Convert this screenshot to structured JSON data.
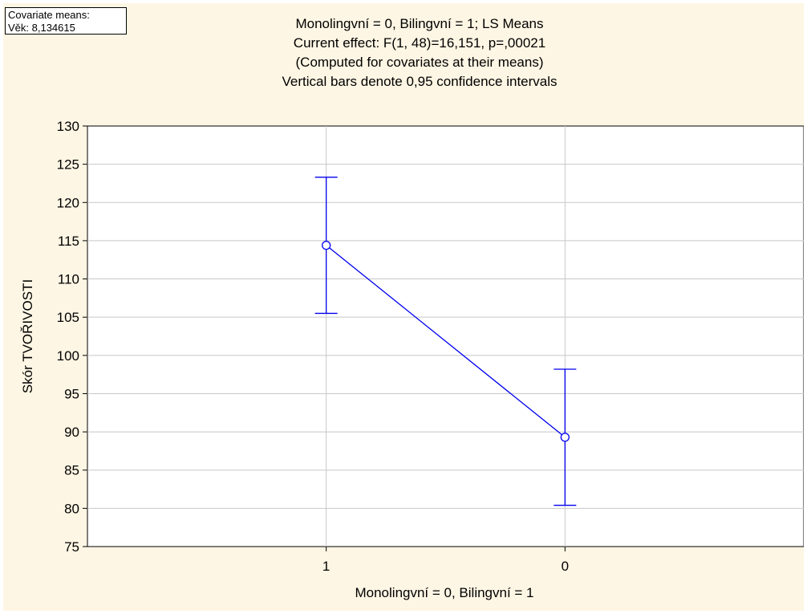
{
  "covariate_box": {
    "line1": "Covariate means:",
    "line2": "Věk: 8,134615"
  },
  "chart_data": {
    "type": "line",
    "title": "Monolingvní = 0, Bilingvní = 1; LS Means",
    "subtitle_lines": [
      "Current effect: F(1, 48)=16,151, p=,00021",
      "(Computed for covariates at their means)",
      "Vertical bars denote 0,95 confidence intervals"
    ],
    "xlabel": "Monolingvní = 0, Bilingvní = 1",
    "ylabel": "Skór TVOŘIVOSTI",
    "categories": [
      "1",
      "0"
    ],
    "series": [
      {
        "values": [
          114.4,
          89.3
        ],
        "ci_lower": [
          105.5,
          80.4
        ],
        "ci_upper": [
          123.3,
          98.2
        ],
        "color": "#0000ee"
      }
    ],
    "ylim": [
      75,
      130
    ],
    "yticks": [
      75,
      80,
      85,
      90,
      95,
      100,
      105,
      110,
      115,
      120,
      125,
      130
    ],
    "grid": true
  }
}
